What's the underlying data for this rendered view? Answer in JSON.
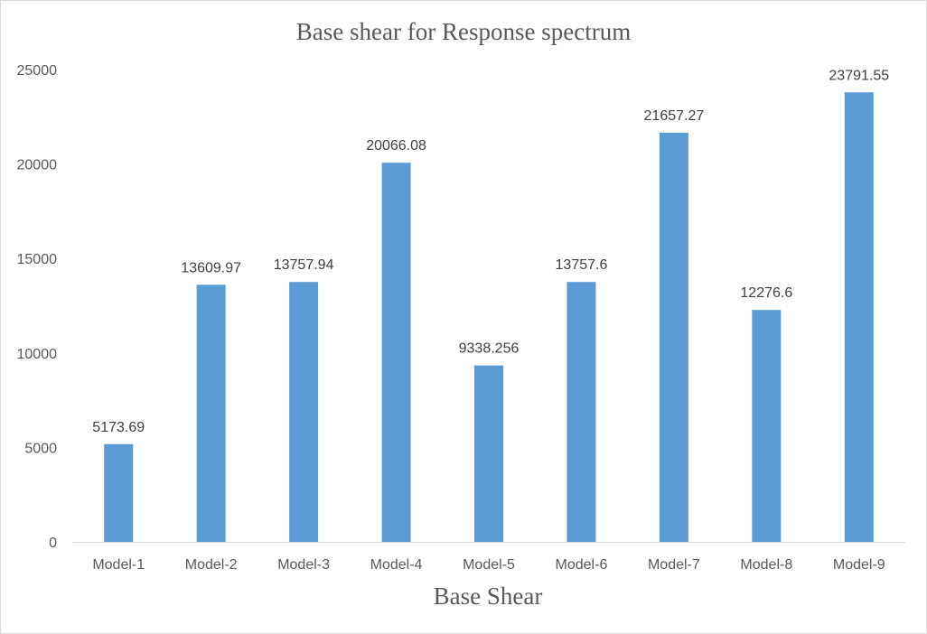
{
  "chart_data": {
    "type": "bar",
    "title": "Base shear for Response spectrum",
    "xlabel": "Base Shear",
    "ylabel": "",
    "categories": [
      "Model-1",
      "Model-2",
      "Model-3",
      "Model-4",
      "Model-5",
      "Model-6",
      "Model-7",
      "Model-8",
      "Model-9"
    ],
    "values": [
      5173.69,
      13609.97,
      13757.94,
      20066.08,
      9338.256,
      13757.6,
      21657.27,
      12276.6,
      23791.55
    ],
    "data_labels": [
      "5173.69",
      "13609.97",
      "13757.94",
      "20066.08",
      "9338.256",
      "13757.6",
      "21657.27",
      "12276.6",
      "23791.55"
    ],
    "ylim": [
      0,
      25000
    ],
    "yticks": [
      "0",
      "5000",
      "10000",
      "15000",
      "20000",
      "25000"
    ],
    "grid": false,
    "legend": "none",
    "bar_color": "#5b9bd5"
  }
}
